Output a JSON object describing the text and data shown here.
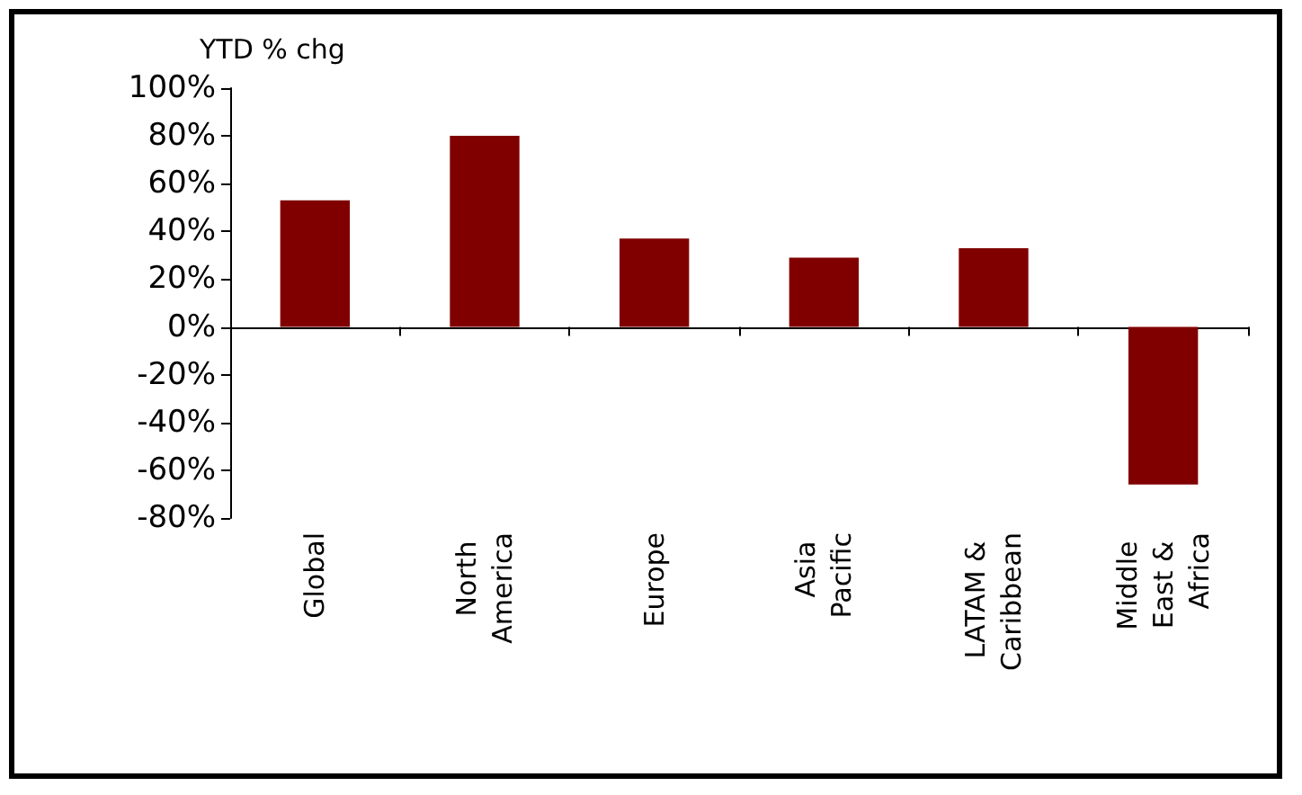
{
  "chart_data": {
    "type": "bar",
    "ylabel": "YTD % chg",
    "categories": [
      "Global",
      "North America",
      "Europe",
      "Asia Pacific",
      "LATAM & Caribbean",
      "Middle East & Africa"
    ],
    "values": [
      53,
      80,
      37,
      29,
      33,
      -66
    ],
    "color": "#800000",
    "ylim": [
      -80,
      100
    ],
    "yticks": [
      {
        "value": -80,
        "label": "-80%"
      },
      {
        "value": -60,
        "label": "-60%"
      },
      {
        "value": -40,
        "label": "-40%"
      },
      {
        "value": -20,
        "label": "-20%"
      },
      {
        "value": 0,
        "label": "0%"
      },
      {
        "value": 20,
        "label": "20%"
      },
      {
        "value": 40,
        "label": "40%"
      },
      {
        "value": 60,
        "label": "60%"
      },
      {
        "value": 80,
        "label": "80%"
      },
      {
        "value": 100,
        "label": "100%"
      }
    ]
  }
}
